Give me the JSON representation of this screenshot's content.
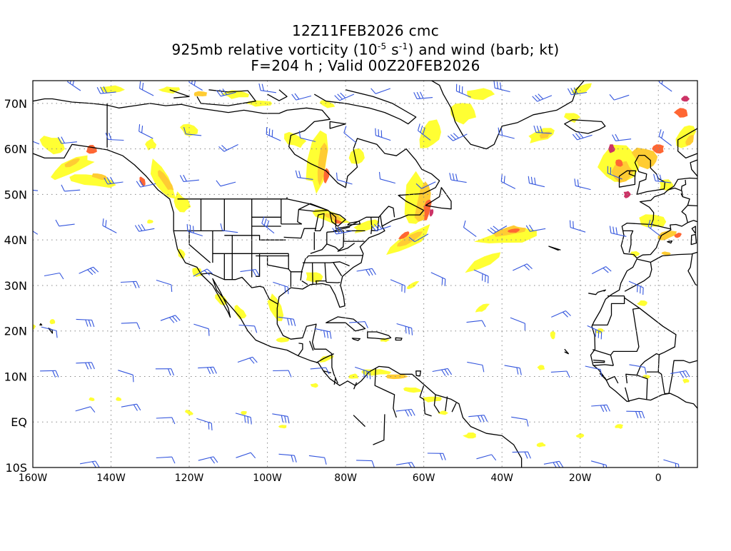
{
  "title": {
    "line1": "12Z11FEB2026 cmc",
    "line2_prefix": "925mb relative vorticity (10",
    "line2_exp1": "-5",
    "line2_mid": " s",
    "line2_exp2": "-1",
    "line2_suffix": ") and wind (barb; kt)",
    "line3": "F=204 h ; Valid 00Z20FEB2026"
  },
  "axes": {
    "lon_labels": [
      "160W",
      "140W",
      "120W",
      "100W",
      "80W",
      "60W",
      "40W",
      "20W",
      "0"
    ],
    "lat_labels": [
      "70N",
      "60N",
      "50N",
      "40N",
      "30N",
      "20N",
      "10N",
      "EQ",
      "10S"
    ],
    "lon_range": [
      -160,
      10
    ],
    "lat_range": [
      -10,
      75
    ]
  },
  "colors": {
    "shade_low": "#ffff33",
    "shade_mid": "#ffcc33",
    "shade_high": "#ff6633",
    "shade_max": "#cc3366",
    "barb": "#3355dd",
    "coast": "#000000",
    "grid": "#888888"
  }
}
